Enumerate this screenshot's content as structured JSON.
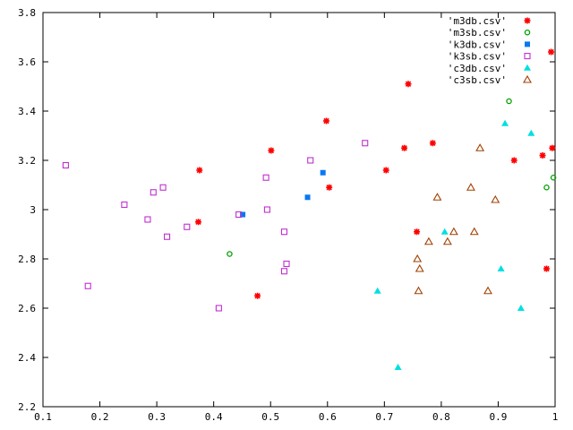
{
  "chart_data": {
    "type": "scatter",
    "title": "",
    "xlabel": "",
    "ylabel": "",
    "xlim": [
      0.1,
      1.0
    ],
    "ylim": [
      2.2,
      3.8
    ],
    "x_ticks": [
      0.1,
      0.2,
      0.3,
      0.4,
      0.5,
      0.6,
      0.7,
      0.8,
      0.9,
      1.0
    ],
    "x_tick_labels": [
      "0.1",
      "0.2",
      "0.3",
      "0.4",
      "0.5",
      "0.6",
      "0.7",
      "0.8",
      "0.9",
      "1"
    ],
    "y_ticks": [
      2.2,
      2.4,
      2.6,
      2.8,
      3.0,
      3.2,
      3.4,
      3.6,
      3.8
    ],
    "y_tick_labels": [
      "2.2",
      "2.4",
      "2.6",
      "2.8",
      "3",
      "3.2",
      "3.4",
      "3.6",
      "3.8"
    ],
    "grid": false,
    "legend_position": "top-right",
    "series": [
      {
        "name": "'m3db.csv'",
        "marker": "star",
        "color": "#ff0000",
        "points": [
          [
            0.375,
            3.16
          ],
          [
            0.373,
            2.95
          ],
          [
            0.477,
            2.65
          ],
          [
            0.501,
            3.24
          ],
          [
            0.598,
            3.36
          ],
          [
            0.603,
            3.09
          ],
          [
            0.703,
            3.16
          ],
          [
            0.735,
            3.25
          ],
          [
            0.742,
            3.51
          ],
          [
            0.757,
            2.91
          ],
          [
            0.785,
            3.27
          ],
          [
            0.928,
            3.2
          ],
          [
            0.978,
            3.22
          ],
          [
            0.985,
            2.76
          ],
          [
            0.993,
            3.64
          ],
          [
            0.995,
            3.25
          ]
        ]
      },
      {
        "name": "'m3sb.csv'",
        "marker": "circle-open",
        "color": "#00a000",
        "points": [
          [
            0.428,
            2.82
          ],
          [
            0.919,
            3.44
          ],
          [
            0.985,
            3.09
          ],
          [
            0.997,
            3.13
          ]
        ]
      },
      {
        "name": "'k3db.csv'",
        "marker": "square-filled",
        "color": "#0a78f0",
        "points": [
          [
            0.451,
            2.98
          ],
          [
            0.565,
            3.05
          ],
          [
            0.592,
            3.15
          ]
        ]
      },
      {
        "name": "'k3sb.csv'",
        "marker": "square-open",
        "color": "#c030d0",
        "points": [
          [
            0.14,
            3.18
          ],
          [
            0.179,
            2.69
          ],
          [
            0.243,
            3.02
          ],
          [
            0.284,
            2.96
          ],
          [
            0.294,
            3.07
          ],
          [
            0.311,
            3.09
          ],
          [
            0.318,
            2.89
          ],
          [
            0.353,
            2.93
          ],
          [
            0.409,
            2.6
          ],
          [
            0.444,
            2.98
          ],
          [
            0.492,
            3.13
          ],
          [
            0.494,
            3.0
          ],
          [
            0.524,
            2.91
          ],
          [
            0.524,
            2.75
          ],
          [
            0.528,
            2.78
          ],
          [
            0.57,
            3.2
          ],
          [
            0.666,
            3.27
          ]
        ]
      },
      {
        "name": "'c3db.csv'",
        "marker": "triangle-filled",
        "color": "#00e0e0",
        "points": [
          [
            0.688,
            2.67
          ],
          [
            0.724,
            2.36
          ],
          [
            0.806,
            2.91
          ],
          [
            0.905,
            2.76
          ],
          [
            0.912,
            3.35
          ],
          [
            0.94,
            2.6
          ],
          [
            0.958,
            3.31
          ]
        ]
      },
      {
        "name": "'c3sb.csv'",
        "marker": "triangle-open",
        "color": "#a04000",
        "points": [
          [
            0.758,
            2.8
          ],
          [
            0.76,
            2.67
          ],
          [
            0.762,
            2.76
          ],
          [
            0.778,
            2.87
          ],
          [
            0.793,
            3.05
          ],
          [
            0.811,
            2.87
          ],
          [
            0.822,
            2.91
          ],
          [
            0.852,
            3.09
          ],
          [
            0.858,
            2.91
          ],
          [
            0.868,
            3.25
          ],
          [
            0.882,
            2.67
          ],
          [
            0.895,
            3.04
          ]
        ]
      }
    ]
  }
}
